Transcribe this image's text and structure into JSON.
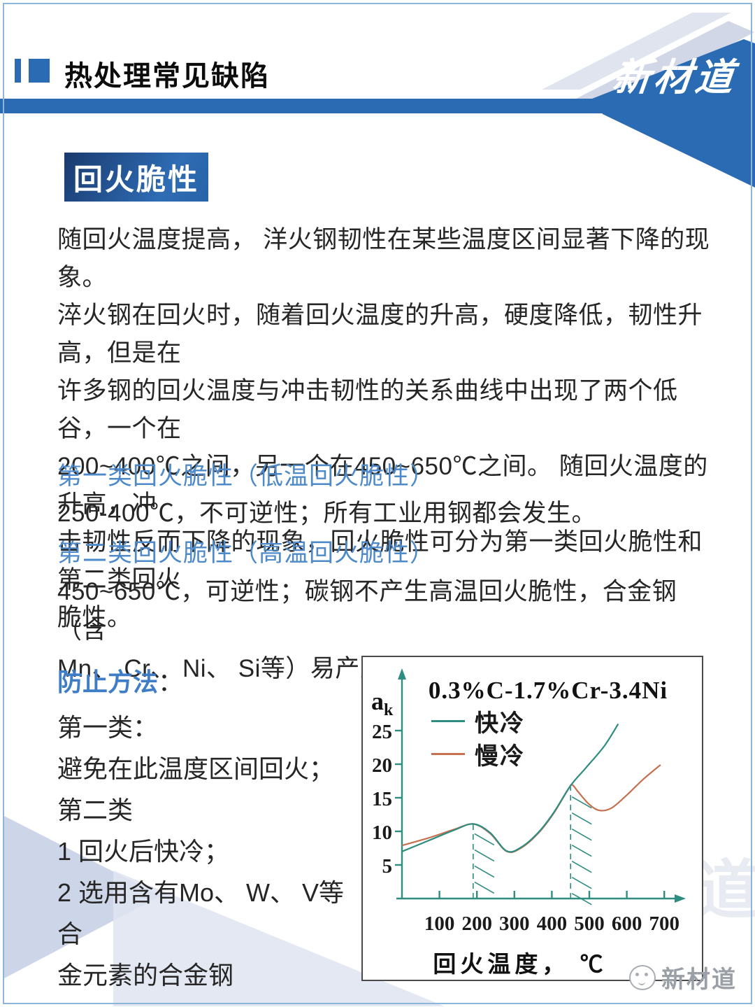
{
  "header": {
    "title": "热处理常见缺陷",
    "logo": "新材道"
  },
  "badge": "回火脆性",
  "intro": "随回火温度提高， 洋火钢韧性在某些温度区间显著下降的现象。\n淬火钢在回火时，随着回火温度的升高，硬度降低，韧性升高，但是在\n许多钢的回火温度与冲击韧性的关系曲线中出现了两个低谷，一个在\n200~400℃之间，另一个在450~650℃之间。 随回火温度的升高，冲\n击韧性反而下降的现象，回火脆性可分为第一类回火脆性和第二类回火\n脆性。",
  "section1": {
    "heading": "第一类回火脆性（低温回火脆性）",
    "body": "250-400℃，不可逆性；所有工业用钢都会发生。"
  },
  "section2": {
    "heading": "第二类回火脆性（高温回火脆性）",
    "body": "450~650℃，可逆性；碳钢不产生高温回火脆性，合金钢 （含\nMn、 Cr、 Ni、 Si等）易产生。"
  },
  "prevention": {
    "label": "防止方法",
    "colon": "：",
    "lines": "第一类：\n避免在此温度区间回火；\n第二类\n1 回火后快冷；\n2 选用含有Mo、 W、 V等合\n金元素的合金钢"
  },
  "watermark": {
    "text": "新材道",
    "ghost": "道"
  },
  "colors": {
    "brand_blue": "#2b6bb3",
    "subhead_blue": "#4e8ac9",
    "axis_teal": "#2f8c80",
    "slow_orange": "#c5704e"
  },
  "chart_data": {
    "type": "line",
    "title": "0.3%C-1.7%Cr-3.4Ni",
    "ylabel_main": "a",
    "ylabel_sub": "k",
    "xlabel": "回火温度， ℃",
    "x_ticks": [
      100,
      200,
      300,
      400,
      500,
      600,
      700
    ],
    "y_ticks": [
      5,
      10,
      15,
      20,
      25
    ],
    "xlim": [
      0,
      740
    ],
    "ylim": [
      0,
      27
    ],
    "grid": false,
    "legend_position": "top-left",
    "axis_color": "#2f8c80",
    "series": [
      {
        "name": "快冷",
        "color": "#2f8c80",
        "x": [
          0,
          70,
          140,
          190,
          235,
          280,
          320,
          365,
          405,
          450,
          490,
          540,
          577
        ],
        "y": [
          7.0,
          8.6,
          10.2,
          11.1,
          9.8,
          7.05,
          7.7,
          9.9,
          12.8,
          16.8,
          19.4,
          22.7,
          26.0
        ]
      },
      {
        "name": "慢冷",
        "color": "#c5704e",
        "x": [
          0,
          70,
          140,
          190,
          235,
          280,
          320,
          365,
          405,
          445,
          455,
          470,
          500,
          528,
          560,
          600,
          645,
          690
        ],
        "y": [
          7.9,
          9.0,
          10.3,
          11.1,
          9.7,
          7.0,
          7.6,
          9.8,
          12.7,
          16.4,
          16.9,
          15.9,
          14.0,
          13.1,
          13.5,
          15.4,
          17.8,
          19.9
        ]
      }
    ],
    "hatch_lines": [
      {
        "x": 190,
        "y_top": 11.1
      },
      {
        "x": 450,
        "y_top": 16.6
      }
    ]
  }
}
